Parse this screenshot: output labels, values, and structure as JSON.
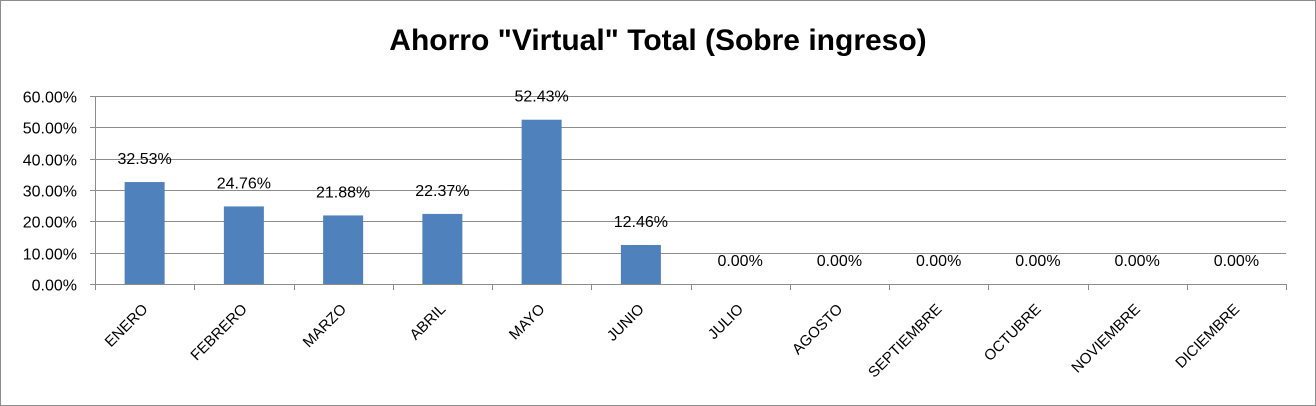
{
  "chart_data": {
    "type": "bar",
    "title": "Ahorro \"Virtual\" Total (Sobre ingreso)",
    "categories": [
      "ENERO",
      "FEBRERO",
      "MARZO",
      "ABRIL",
      "MAYO",
      "JUNIO",
      "JULIO",
      "AGOSTO",
      "SEPTIEMBRE",
      "OCTUBRE",
      "NOVIEMBRE",
      "DICIEMBRE"
    ],
    "values": [
      32.53,
      24.76,
      21.88,
      22.37,
      52.43,
      12.46,
      0,
      0,
      0,
      0,
      0,
      0
    ],
    "value_labels": [
      "32.53%",
      "24.76%",
      "21.88%",
      "22.37%",
      "52.43%",
      "12.46%",
      "0.00%",
      "0.00%",
      "0.00%",
      "0.00%",
      "0.00%",
      "0.00%"
    ],
    "y_ticks": [
      0,
      10,
      20,
      30,
      40,
      50,
      60
    ],
    "y_tick_labels": [
      "0.00%",
      "10.00%",
      "20.00%",
      "30.00%",
      "40.00%",
      "50.00%",
      "60.00%"
    ],
    "ylim": [
      0,
      60
    ],
    "grid": true,
    "legend": "none",
    "bar_color": "#4f81bd",
    "xlabel": "",
    "ylabel": ""
  }
}
